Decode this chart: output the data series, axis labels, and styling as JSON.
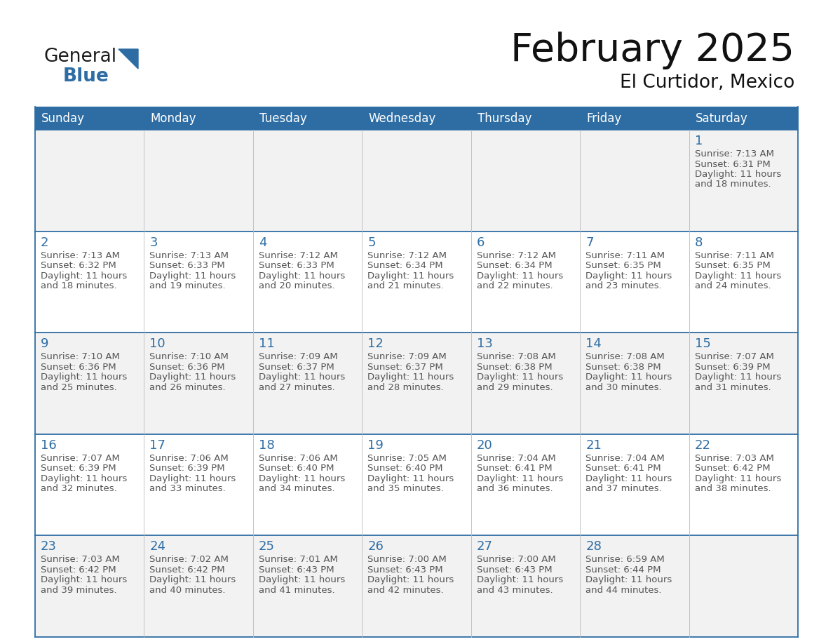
{
  "title": "February 2025",
  "subtitle": "El Curtidor, Mexico",
  "header_color": "#2E6DA4",
  "header_text_color": "#FFFFFF",
  "cell_border_color": "#2E6DA4",
  "day_number_color": "#2E6DA4",
  "info_text_color": "#555555",
  "background_color": "#FFFFFF",
  "alt_row_color": "#F2F2F2",
  "days_of_week": [
    "Sunday",
    "Monday",
    "Tuesday",
    "Wednesday",
    "Thursday",
    "Friday",
    "Saturday"
  ],
  "weeks": [
    [
      {
        "day": "",
        "sunrise": "",
        "sunset": "",
        "daylight_min": ""
      },
      {
        "day": "",
        "sunrise": "",
        "sunset": "",
        "daylight_min": ""
      },
      {
        "day": "",
        "sunrise": "",
        "sunset": "",
        "daylight_min": ""
      },
      {
        "day": "",
        "sunrise": "",
        "sunset": "",
        "daylight_min": ""
      },
      {
        "day": "",
        "sunrise": "",
        "sunset": "",
        "daylight_min": ""
      },
      {
        "day": "",
        "sunrise": "",
        "sunset": "",
        "daylight_min": ""
      },
      {
        "day": "1",
        "sunrise": "7:13 AM",
        "sunset": "6:31 PM",
        "daylight_min": "18"
      }
    ],
    [
      {
        "day": "2",
        "sunrise": "7:13 AM",
        "sunset": "6:32 PM",
        "daylight_min": "18"
      },
      {
        "day": "3",
        "sunrise": "7:13 AM",
        "sunset": "6:33 PM",
        "daylight_min": "19"
      },
      {
        "day": "4",
        "sunrise": "7:12 AM",
        "sunset": "6:33 PM",
        "daylight_min": "20"
      },
      {
        "day": "5",
        "sunrise": "7:12 AM",
        "sunset": "6:34 PM",
        "daylight_min": "21"
      },
      {
        "day": "6",
        "sunrise": "7:12 AM",
        "sunset": "6:34 PM",
        "daylight_min": "22"
      },
      {
        "day": "7",
        "sunrise": "7:11 AM",
        "sunset": "6:35 PM",
        "daylight_min": "23"
      },
      {
        "day": "8",
        "sunrise": "7:11 AM",
        "sunset": "6:35 PM",
        "daylight_min": "24"
      }
    ],
    [
      {
        "day": "9",
        "sunrise": "7:10 AM",
        "sunset": "6:36 PM",
        "daylight_min": "25"
      },
      {
        "day": "10",
        "sunrise": "7:10 AM",
        "sunset": "6:36 PM",
        "daylight_min": "26"
      },
      {
        "day": "11",
        "sunrise": "7:09 AM",
        "sunset": "6:37 PM",
        "daylight_min": "27"
      },
      {
        "day": "12",
        "sunrise": "7:09 AM",
        "sunset": "6:37 PM",
        "daylight_min": "28"
      },
      {
        "day": "13",
        "sunrise": "7:08 AM",
        "sunset": "6:38 PM",
        "daylight_min": "29"
      },
      {
        "day": "14",
        "sunrise": "7:08 AM",
        "sunset": "6:38 PM",
        "daylight_min": "30"
      },
      {
        "day": "15",
        "sunrise": "7:07 AM",
        "sunset": "6:39 PM",
        "daylight_min": "31"
      }
    ],
    [
      {
        "day": "16",
        "sunrise": "7:07 AM",
        "sunset": "6:39 PM",
        "daylight_min": "32"
      },
      {
        "day": "17",
        "sunrise": "7:06 AM",
        "sunset": "6:39 PM",
        "daylight_min": "33"
      },
      {
        "day": "18",
        "sunrise": "7:06 AM",
        "sunset": "6:40 PM",
        "daylight_min": "34"
      },
      {
        "day": "19",
        "sunrise": "7:05 AM",
        "sunset": "6:40 PM",
        "daylight_min": "35"
      },
      {
        "day": "20",
        "sunrise": "7:04 AM",
        "sunset": "6:41 PM",
        "daylight_min": "36"
      },
      {
        "day": "21",
        "sunrise": "7:04 AM",
        "sunset": "6:41 PM",
        "daylight_min": "37"
      },
      {
        "day": "22",
        "sunrise": "7:03 AM",
        "sunset": "6:42 PM",
        "daylight_min": "38"
      }
    ],
    [
      {
        "day": "23",
        "sunrise": "7:03 AM",
        "sunset": "6:42 PM",
        "daylight_min": "39"
      },
      {
        "day": "24",
        "sunrise": "7:02 AM",
        "sunset": "6:42 PM",
        "daylight_min": "40"
      },
      {
        "day": "25",
        "sunrise": "7:01 AM",
        "sunset": "6:43 PM",
        "daylight_min": "41"
      },
      {
        "day": "26",
        "sunrise": "7:00 AM",
        "sunset": "6:43 PM",
        "daylight_min": "42"
      },
      {
        "day": "27",
        "sunrise": "7:00 AM",
        "sunset": "6:43 PM",
        "daylight_min": "43"
      },
      {
        "day": "28",
        "sunrise": "6:59 AM",
        "sunset": "6:44 PM",
        "daylight_min": "44"
      },
      {
        "day": "",
        "sunrise": "",
        "sunset": "",
        "daylight_min": ""
      }
    ]
  ]
}
